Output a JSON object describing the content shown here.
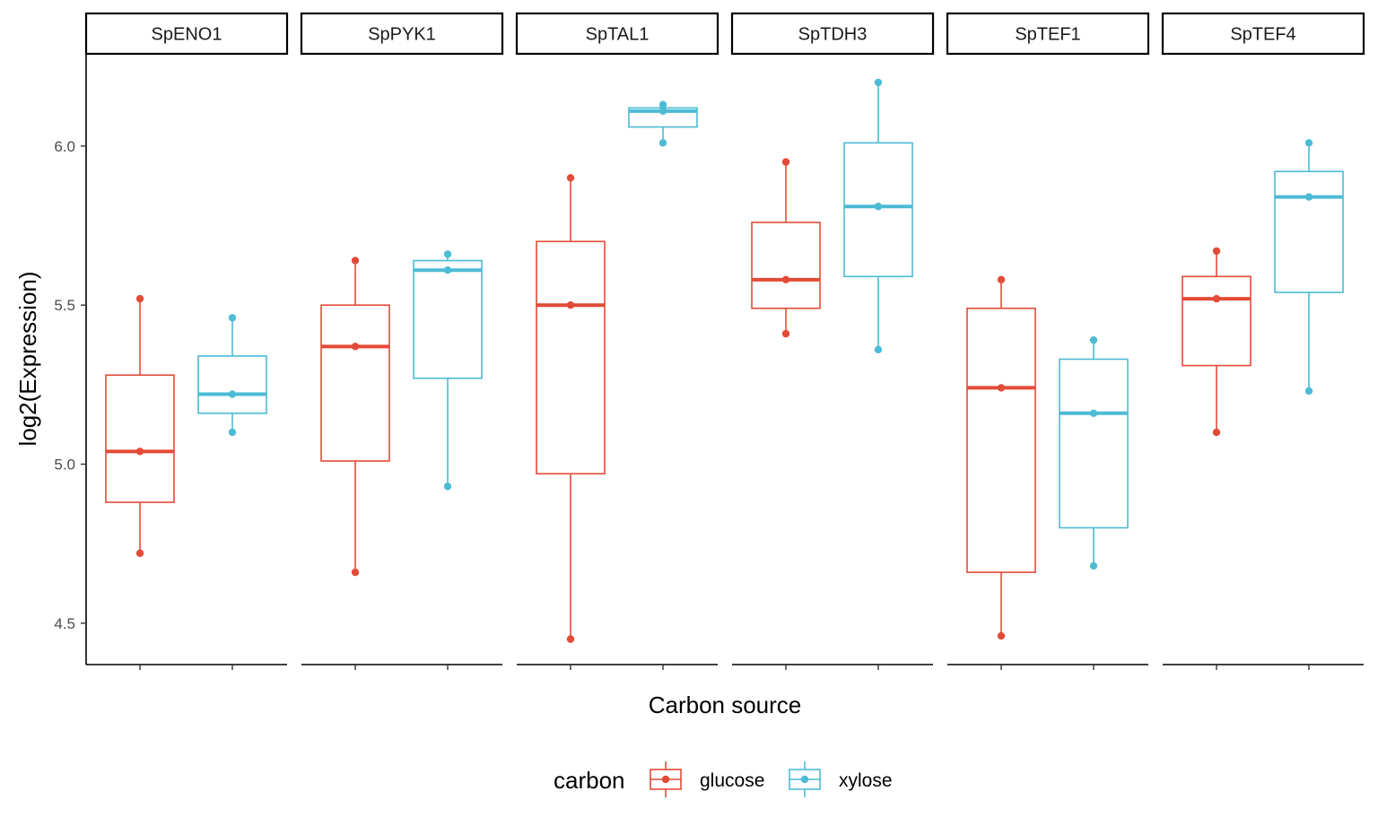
{
  "chart_data": {
    "type": "boxplot",
    "facet_by": "gene",
    "facets": [
      "SpENO1",
      "SpPYK1",
      "SpTAL1",
      "SpTDH3",
      "SpTEF1",
      "SpTEF4"
    ],
    "xlabel": "Carbon source",
    "ylabel": "log2(Expression)",
    "ylim": [
      4.37,
      6.29
    ],
    "yticks": [
      4.5,
      5.0,
      5.5,
      6.0
    ],
    "ytick_labels": [
      "4.5",
      "5.0",
      "5.5",
      "6.0"
    ],
    "x_tick_labels_shown": false,
    "legend": {
      "title": "carbon",
      "position": "bottom",
      "entries": [
        "glucose",
        "xylose"
      ]
    },
    "colors": {
      "glucose": "#E24B37",
      "xylose": "#4DBBD5"
    },
    "series": [
      {
        "name": "glucose",
        "boxes": [
          {
            "facet": "SpENO1",
            "whisker_low": 4.72,
            "q1": 4.88,
            "median": 5.04,
            "q3": 5.28,
            "whisker_high": 5.52,
            "points": [
              4.72,
              5.04,
              5.52
            ]
          },
          {
            "facet": "SpPYK1",
            "whisker_low": 4.66,
            "q1": 5.01,
            "median": 5.37,
            "q3": 5.5,
            "whisker_high": 5.64,
            "points": [
              4.66,
              5.37,
              5.64
            ]
          },
          {
            "facet": "SpTAL1",
            "whisker_low": 4.45,
            "q1": 4.97,
            "median": 5.5,
            "q3": 5.7,
            "whisker_high": 5.9,
            "points": [
              4.45,
              5.5,
              5.9
            ]
          },
          {
            "facet": "SpTDH3",
            "whisker_low": 5.41,
            "q1": 5.49,
            "median": 5.58,
            "q3": 5.76,
            "whisker_high": 5.95,
            "points": [
              5.41,
              5.58,
              5.95
            ]
          },
          {
            "facet": "SpTEF1",
            "whisker_low": 4.46,
            "q1": 4.66,
            "median": 5.24,
            "q3": 5.49,
            "whisker_high": 5.58,
            "points": [
              4.46,
              5.24,
              5.58
            ]
          },
          {
            "facet": "SpTEF4",
            "whisker_low": 5.1,
            "q1": 5.31,
            "median": 5.52,
            "q3": 5.59,
            "whisker_high": 5.67,
            "points": [
              5.1,
              5.52,
              5.67
            ]
          }
        ]
      },
      {
        "name": "xylose",
        "boxes": [
          {
            "facet": "SpENO1",
            "whisker_low": 5.1,
            "q1": 5.16,
            "median": 5.22,
            "q3": 5.34,
            "whisker_high": 5.46,
            "points": [
              5.1,
              5.22,
              5.46
            ]
          },
          {
            "facet": "SpPYK1",
            "whisker_low": 4.93,
            "q1": 5.27,
            "median": 5.61,
            "q3": 5.64,
            "whisker_high": 5.66,
            "points": [
              4.93,
              5.61,
              5.66
            ]
          },
          {
            "facet": "SpTAL1",
            "whisker_low": 6.01,
            "q1": 6.06,
            "median": 6.11,
            "q3": 6.12,
            "whisker_high": 6.13,
            "points": [
              6.01,
              6.11,
              6.13
            ]
          },
          {
            "facet": "SpTDH3",
            "whisker_low": 5.36,
            "q1": 5.59,
            "median": 5.81,
            "q3": 6.01,
            "whisker_high": 6.2,
            "points": [
              5.36,
              5.81,
              6.2
            ]
          },
          {
            "facet": "SpTEF1",
            "whisker_low": 4.68,
            "q1": 4.8,
            "median": 5.16,
            "q3": 5.33,
            "whisker_high": 5.39,
            "points": [
              4.68,
              5.16,
              5.39
            ]
          },
          {
            "facet": "SpTEF4",
            "whisker_low": 5.23,
            "q1": 5.54,
            "median": 5.84,
            "q3": 5.92,
            "whisker_high": 6.01,
            "points": [
              5.23,
              5.84,
              6.01
            ]
          }
        ]
      }
    ]
  }
}
